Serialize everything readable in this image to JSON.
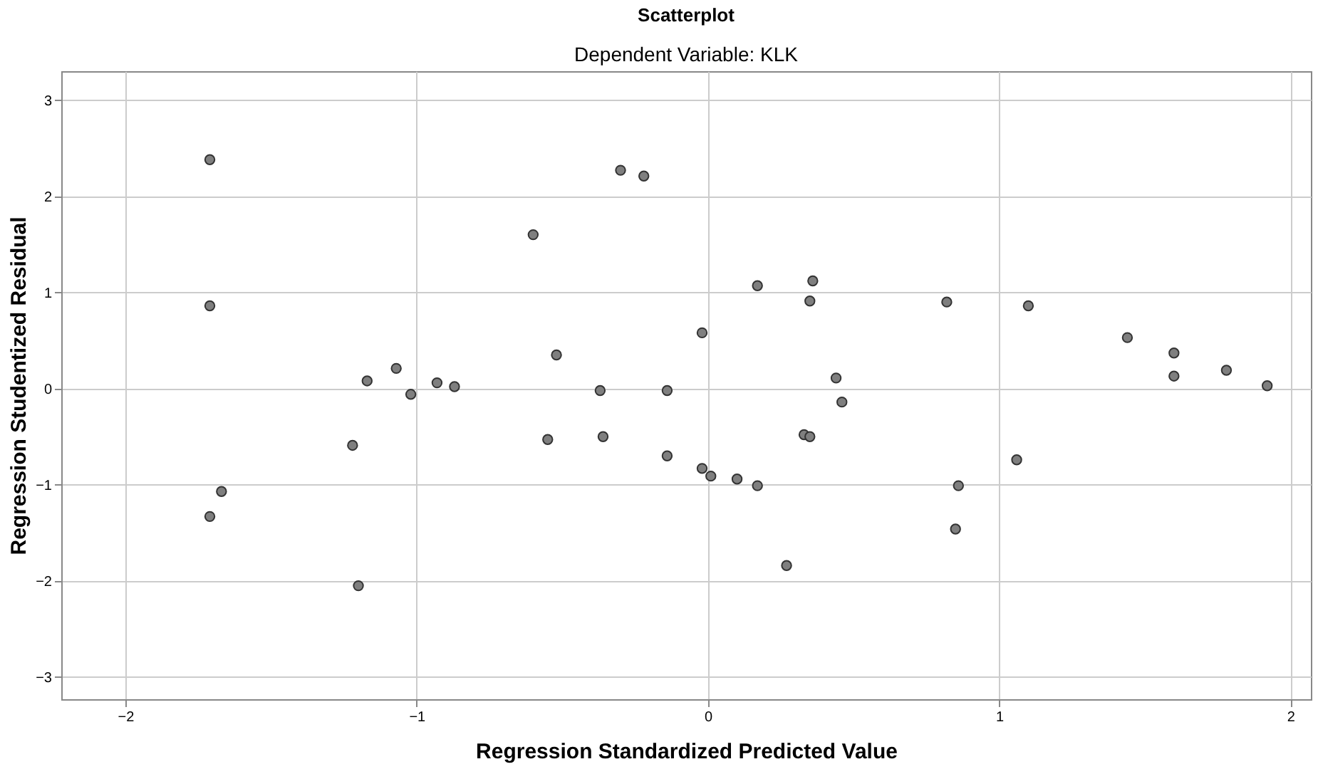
{
  "chart_data": {
    "type": "scatter",
    "title": "Scatterplot",
    "subtitle": "Dependent Variable: KLK",
    "xlabel": "Regression Standardized Predicted Value",
    "ylabel": "Regression Studentized Residual",
    "x": [
      -1.71,
      -1.71,
      -1.71,
      -1.67,
      -1.22,
      -1.2,
      -1.17,
      -1.07,
      -1.02,
      -0.93,
      -0.87,
      -0.6,
      -0.52,
      -0.55,
      -0.37,
      -0.36,
      -0.3,
      -0.22,
      -0.14,
      -0.14,
      -0.02,
      -0.02,
      0.01,
      0.1,
      0.17,
      0.17,
      0.27,
      0.33,
      0.35,
      0.35,
      0.36,
      0.44,
      0.46,
      0.82,
      0.85,
      0.86,
      1.06,
      1.1,
      1.44,
      1.6,
      1.6,
      1.78,
      1.92
    ],
    "series": [
      {
        "color": "#7f7f7f",
        "values": [
          2.38,
          0.86,
          -1.33,
          -1.07,
          -0.59,
          -2.05,
          0.08,
          0.21,
          -0.06,
          0.06,
          0.02,
          1.6,
          0.35,
          -0.53,
          -0.02,
          -0.5,
          2.27,
          2.21,
          -0.7,
          -0.02,
          0.58,
          -0.83,
          -0.91,
          -0.94,
          -1.01,
          1.07,
          -1.84,
          -0.48,
          -0.5,
          0.91,
          1.12,
          0.11,
          -0.14,
          0.9,
          -1.46,
          -1.01,
          -0.74,
          0.86,
          0.53,
          0.37,
          0.13,
          0.19,
          0.03
        ]
      }
    ],
    "xlim": [
      -2.22,
      2.07
    ],
    "xticks": [
      -2,
      -1,
      0,
      1,
      2
    ],
    "ylim": [
      -3.23,
      3.3
    ],
    "yticks": [
      -3,
      -2,
      -1,
      0,
      1,
      2,
      3
    ],
    "grid": true,
    "marker": "circle"
  }
}
